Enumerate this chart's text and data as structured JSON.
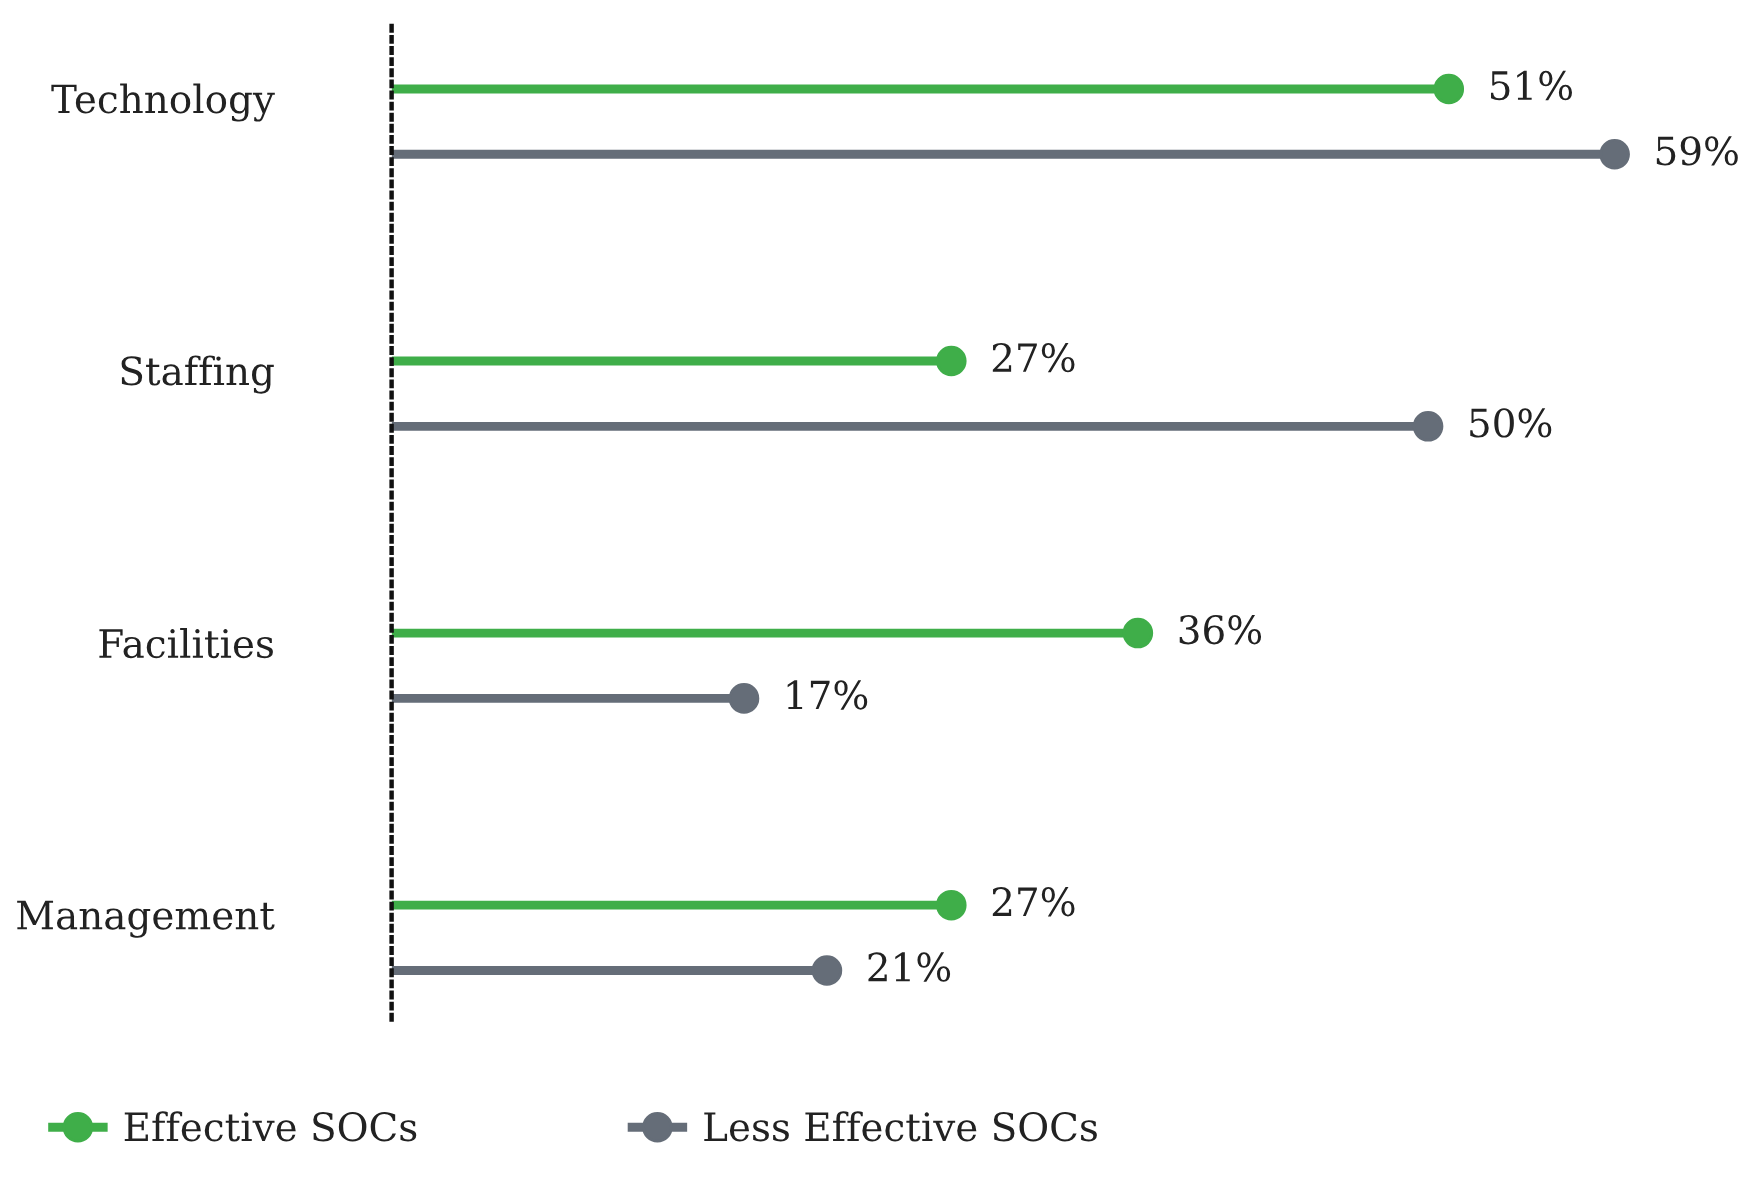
{
  "chart_data": {
    "type": "lollipop",
    "orientation": "horizontal",
    "categories": [
      "Technology",
      "Staffing",
      "Facilities",
      "Management"
    ],
    "series": [
      {
        "name": "Effective SOCs",
        "color": "#3fae49",
        "values": [
          51,
          27,
          36,
          27
        ],
        "value_labels": [
          "51%",
          "27%",
          "36%",
          "27%"
        ]
      },
      {
        "name": "Less Effective SOCs",
        "color": "#656d78",
        "values": [
          59,
          50,
          17,
          21
        ],
        "value_labels": [
          "59%",
          "50%",
          "17%",
          "21%"
        ]
      }
    ],
    "tick_labels": "y",
    "legend": "bottom left",
    "marker": "circle"
  }
}
